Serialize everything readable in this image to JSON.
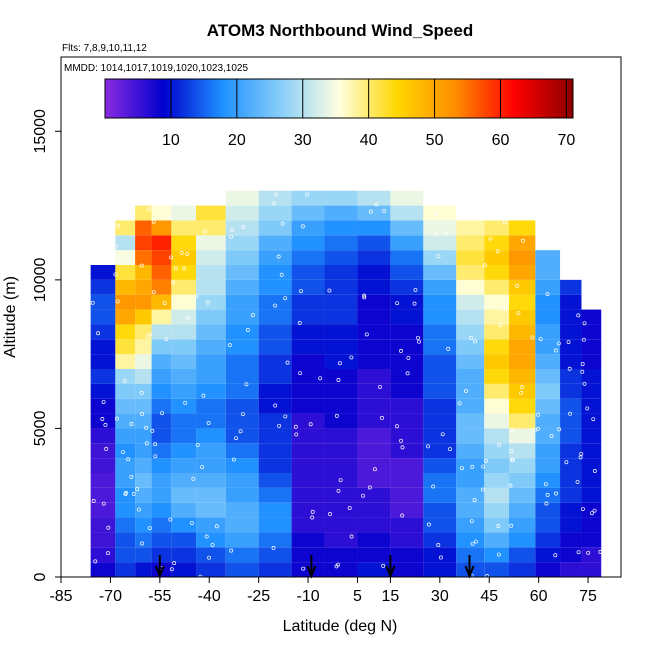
{
  "chart_data": {
    "type": "heatmap",
    "title": "ATOM3 Northbound Wind_Speed",
    "subtitle_flights": "Flts: 7,8,9,10,11,12",
    "subtitle_dates": "MMDD: 1014,1017,1019,1020,1023,1025",
    "xlabel": "Latitude (deg N)",
    "ylabel": "Altitude (m)",
    "xlim": [
      -85,
      85
    ],
    "ylim": [
      0,
      17500
    ],
    "x_ticks": [
      -85,
      -70,
      -55,
      -40,
      -25,
      -10,
      5,
      15,
      30,
      45,
      60,
      75
    ],
    "y_ticks": [
      0,
      5000,
      10000,
      15000
    ],
    "colorbar": {
      "range": [
        0,
        71
      ],
      "ticks": [
        10,
        20,
        30,
        40,
        50,
        60,
        70
      ],
      "colors": [
        "#8b2be2",
        "#0000cd",
        "#1e90ff",
        "#87cefa",
        "#ffffe0",
        "#ffd700",
        "#ff8c00",
        "#ff0000",
        "#8b0000"
      ]
    },
    "arrow_latitudes": [
      -55,
      -9,
      15,
      39
    ],
    "altitude_bins_m": [
      0,
      500,
      1000,
      1500,
      2000,
      2500,
      3000,
      3500,
      4000,
      4500,
      5000,
      5500,
      6000,
      6500,
      7000,
      7500,
      8000,
      8500,
      9000,
      9500,
      10000,
      10500,
      11000,
      11500,
      12000,
      12500
    ],
    "latitude_profiles": [
      {
        "lat": -72,
        "wind_speed_ms": [
          8,
          6,
          5,
          5,
          4,
          4,
          4,
          5,
          5,
          6,
          8,
          8,
          10,
          12,
          10,
          10,
          12,
          14,
          14,
          12,
          10
        ]
      },
      {
        "lat": -65,
        "wind_speed_ms": [
          12,
          14,
          14,
          16,
          18,
          18,
          20,
          20,
          18,
          20,
          22,
          24,
          26,
          28,
          38,
          42,
          44,
          50,
          52,
          48,
          42,
          35,
          30,
          40
        ]
      },
      {
        "lat": -60,
        "wind_speed_ms": [
          10,
          14,
          16,
          18,
          20,
          22,
          24,
          22,
          20,
          20,
          22,
          24,
          26,
          30,
          34,
          38,
          40,
          46,
          52,
          50,
          48,
          55,
          58,
          56,
          40
        ]
      },
      {
        "lat": -55,
        "wind_speed_ms": [
          8,
          12,
          14,
          16,
          18,
          20,
          20,
          18,
          16,
          14,
          14,
          16,
          18,
          20,
          22,
          26,
          30,
          38,
          48,
          54,
          56,
          58,
          60,
          52,
          36
        ]
      },
      {
        "lat": -48,
        "wind_speed_ms": [
          10,
          12,
          14,
          18,
          22,
          24,
          22,
          20,
          18,
          16,
          16,
          18,
          20,
          22,
          24,
          26,
          30,
          32,
          36,
          40,
          44,
          46,
          44,
          40,
          34
        ]
      },
      {
        "lat": -40,
        "wind_speed_ms": [
          12,
          14,
          18,
          20,
          24,
          24,
          22,
          20,
          20,
          18,
          16,
          16,
          18,
          20,
          20,
          22,
          24,
          26,
          28,
          30,
          30,
          32,
          34,
          40,
          42
        ]
      },
      {
        "lat": -30,
        "wind_speed_ms": [
          14,
          16,
          20,
          22,
          22,
          20,
          20,
          18,
          16,
          14,
          14,
          14,
          16,
          16,
          16,
          18,
          18,
          20,
          20,
          22,
          24,
          26,
          28,
          30,
          32,
          34
        ]
      },
      {
        "lat": -20,
        "wind_speed_ms": [
          12,
          14,
          16,
          18,
          18,
          16,
          14,
          12,
          12,
          12,
          12,
          10,
          10,
          12,
          12,
          14,
          14,
          16,
          16,
          18,
          18,
          20,
          22,
          26,
          28,
          30
        ]
      },
      {
        "lat": -10,
        "wind_speed_ms": [
          8,
          8,
          8,
          6,
          6,
          6,
          6,
          6,
          6,
          6,
          6,
          8,
          8,
          8,
          8,
          10,
          10,
          12,
          12,
          14,
          14,
          16,
          18,
          20,
          24,
          28
        ]
      },
      {
        "lat": 0,
        "wind_speed_ms": [
          8,
          8,
          6,
          6,
          6,
          6,
          6,
          6,
          6,
          6,
          8,
          8,
          8,
          8,
          10,
          10,
          10,
          12,
          12,
          12,
          12,
          14,
          16,
          18,
          22,
          28
        ]
      },
      {
        "lat": 10,
        "wind_speed_ms": [
          10,
          8,
          8,
          6,
          6,
          6,
          4,
          4,
          4,
          4,
          6,
          6,
          6,
          6,
          8,
          8,
          8,
          8,
          8,
          10,
          10,
          12,
          14,
          18,
          24,
          30
        ]
      },
      {
        "lat": 20,
        "wind_speed_ms": [
          8,
          8,
          6,
          6,
          4,
          4,
          4,
          4,
          6,
          6,
          6,
          6,
          8,
          8,
          8,
          8,
          8,
          10,
          10,
          12,
          14,
          16,
          20,
          24,
          30,
          34
        ]
      },
      {
        "lat": 30,
        "wind_speed_ms": [
          10,
          10,
          12,
          14,
          14,
          16,
          16,
          14,
          12,
          12,
          12,
          12,
          14,
          14,
          14,
          16,
          16,
          18,
          18,
          20,
          24,
          28,
          32,
          34,
          36
        ]
      },
      {
        "lat": 40,
        "wind_speed_ms": [
          14,
          16,
          18,
          20,
          22,
          22,
          20,
          20,
          22,
          24,
          24,
          22,
          22,
          22,
          24,
          26,
          28,
          30,
          32,
          36,
          40,
          42,
          40,
          38
        ]
      },
      {
        "lat": 47,
        "wind_speed_ms": [
          14,
          18,
          22,
          26,
          28,
          30,
          28,
          26,
          28,
          30,
          34,
          36,
          40,
          44,
          46,
          44,
          40,
          38,
          36,
          40,
          44,
          46,
          44,
          40
        ]
      },
      {
        "lat": 55,
        "wind_speed_ms": [
          12,
          14,
          18,
          20,
          22,
          24,
          26,
          28,
          30,
          34,
          40,
          44,
          46,
          48,
          50,
          50,
          48,
          46,
          44,
          46,
          50,
          52,
          50,
          44
        ]
      },
      {
        "lat": 63,
        "wind_speed_ms": [
          8,
          10,
          12,
          14,
          14,
          16,
          18,
          20,
          20,
          22,
          22,
          24,
          26,
          24,
          22,
          20,
          20,
          18,
          18,
          20,
          22,
          22
        ]
      },
      {
        "lat": 70,
        "wind_speed_ms": [
          6,
          8,
          8,
          10,
          10,
          12,
          12,
          12,
          12,
          14,
          14,
          14,
          12,
          12,
          10,
          10,
          10,
          10,
          10,
          12
        ]
      },
      {
        "lat": 76,
        "wind_speed_ms": [
          6,
          6,
          8,
          8,
          8,
          10,
          10,
          10,
          10,
          10,
          10,
          10,
          10,
          10,
          8,
          8,
          8,
          8
        ]
      }
    ]
  }
}
